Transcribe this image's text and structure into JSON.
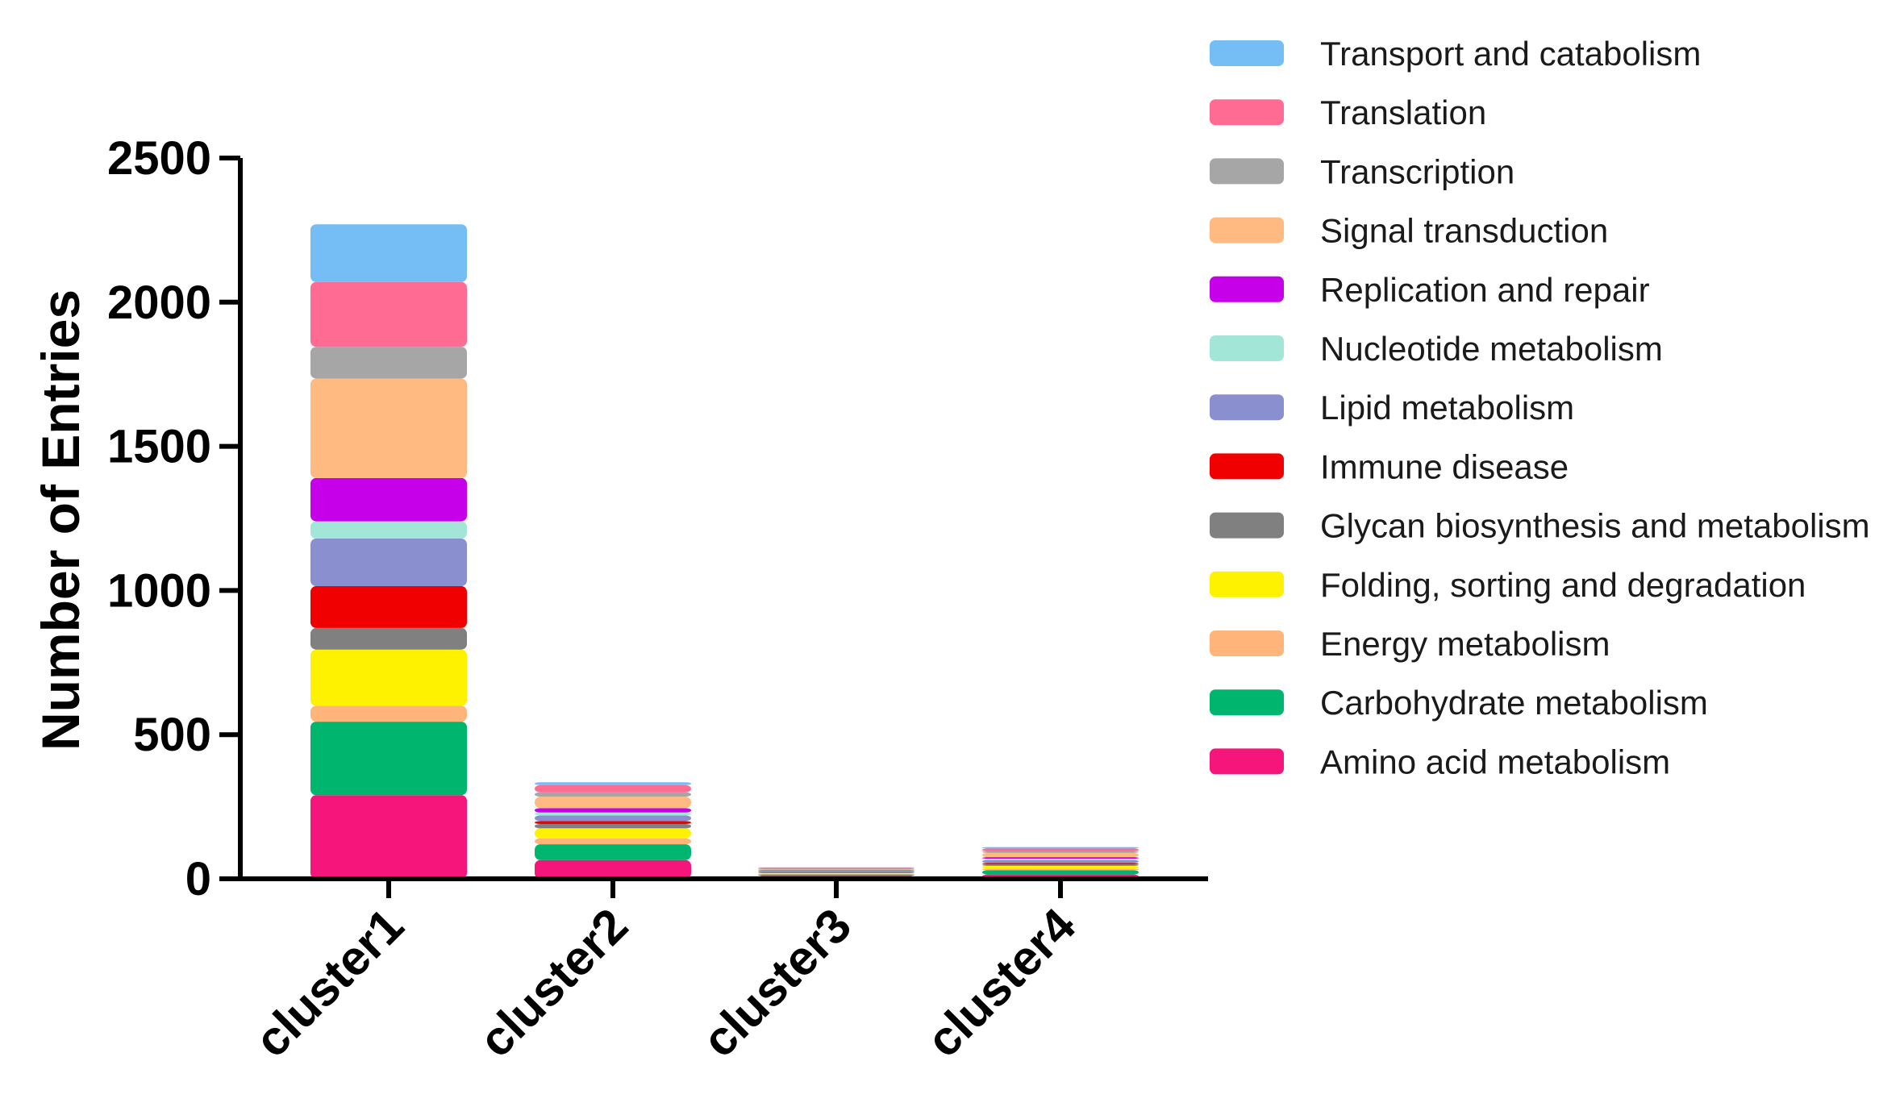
{
  "chart_data": {
    "type": "bar",
    "stacked": true,
    "title": "",
    "xlabel": "",
    "ylabel": "Number of Entries",
    "ylim": [
      0,
      2500
    ],
    "yticks": [
      0,
      500,
      1000,
      1500,
      2000,
      2500
    ],
    "categories": [
      "cluster1",
      "cluster2",
      "cluster3",
      "cluster4"
    ],
    "legend_position": "right",
    "series": [
      {
        "name": "Amino acid metabolism",
        "color": "#F5157B",
        "values": [
          290,
          65,
          10,
          15
        ]
      },
      {
        "name": "Carbohydrate metabolism",
        "color": "#00B56E",
        "values": [
          255,
          55,
          5,
          15
        ]
      },
      {
        "name": "Energy metabolism",
        "color": "#FFB57A",
        "values": [
          55,
          20,
          2,
          5
        ]
      },
      {
        "name": "Folding, sorting and degradation",
        "color": "#FFF200",
        "values": [
          195,
          35,
          3,
          10
        ]
      },
      {
        "name": "Glycan biosynthesis and metabolism",
        "color": "#808080",
        "values": [
          75,
          15,
          2,
          5
        ]
      },
      {
        "name": "Immune disease",
        "color": "#F00000",
        "values": [
          145,
          10,
          2,
          5
        ]
      },
      {
        "name": "Lipid metabolism",
        "color": "#8A8FCF",
        "values": [
          165,
          20,
          3,
          10
        ]
      },
      {
        "name": "Nucleotide metabolism",
        "color": "#A2E6D8",
        "values": [
          60,
          10,
          1,
          5
        ]
      },
      {
        "name": "Replication and repair",
        "color": "#C600E8",
        "values": [
          150,
          15,
          2,
          5
        ]
      },
      {
        "name": "Signal transduction",
        "color": "#FFBA82",
        "values": [
          345,
          40,
          3,
          15
        ]
      },
      {
        "name": "Transcription",
        "color": "#A6A6A6",
        "values": [
          110,
          15,
          2,
          5
        ]
      },
      {
        "name": "Translation",
        "color": "#FF6B93",
        "values": [
          225,
          25,
          3,
          10
        ]
      },
      {
        "name": "Transport and catabolism",
        "color": "#74BDF5",
        "values": [
          200,
          10,
          2,
          5
        ]
      }
    ]
  }
}
